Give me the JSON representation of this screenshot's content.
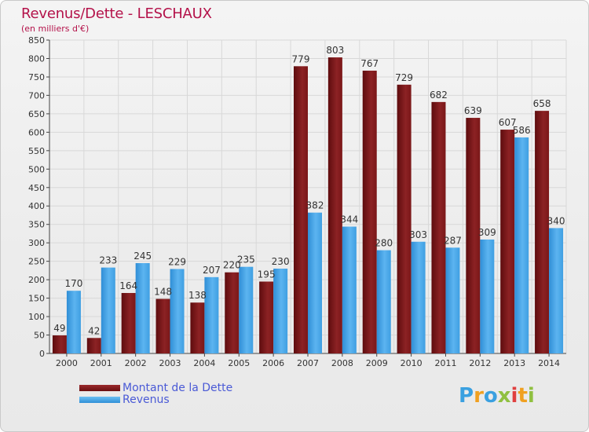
{
  "title": "Revenus/Dette - LESCHAUX",
  "subtitle": "(en milliers d'€)",
  "colors": {
    "dette": "#7b1516",
    "revenus": "#3f9fe2",
    "grid": "#d8d8d8",
    "title": "#b4124a",
    "legend_text": "#4a5ad6"
  },
  "chart_data": {
    "type": "bar",
    "categories": [
      "2000",
      "2001",
      "2002",
      "2003",
      "2004",
      "2005",
      "2006",
      "2007",
      "2008",
      "2009",
      "2010",
      "2011",
      "2012",
      "2013",
      "2014"
    ],
    "series": [
      {
        "name": "Montant de la Dette",
        "values": [
          49,
          42,
          164,
          148,
          138,
          220,
          195,
          779,
          803,
          767,
          729,
          682,
          639,
          607,
          658
        ]
      },
      {
        "name": "Revenus",
        "values": [
          170,
          233,
          245,
          229,
          207,
          235,
          230,
          382,
          344,
          280,
          303,
          287,
          309,
          586,
          340
        ]
      }
    ],
    "title": "Revenus/Dette - LESCHAUX",
    "xlabel": "",
    "ylabel": "",
    "ylim": [
      0,
      850
    ],
    "yticks": [
      0,
      50,
      100,
      150,
      200,
      250,
      300,
      350,
      400,
      450,
      500,
      550,
      600,
      650,
      700,
      750,
      800,
      850
    ],
    "grid": true,
    "legend": "bottom-left"
  },
  "legend": {
    "items": [
      {
        "label": "Montant de la Dette"
      },
      {
        "label": "Revenus"
      }
    ]
  },
  "logo": {
    "text": "Proxiti",
    "letters": [
      "P",
      "r",
      "o",
      "x",
      "i",
      "t",
      "i"
    ],
    "letter_colors": [
      "#3aa0e0",
      "#f0a020",
      "#3aa0e0",
      "#90c040",
      "#e04040",
      "#f0a020",
      "#90c040"
    ]
  }
}
